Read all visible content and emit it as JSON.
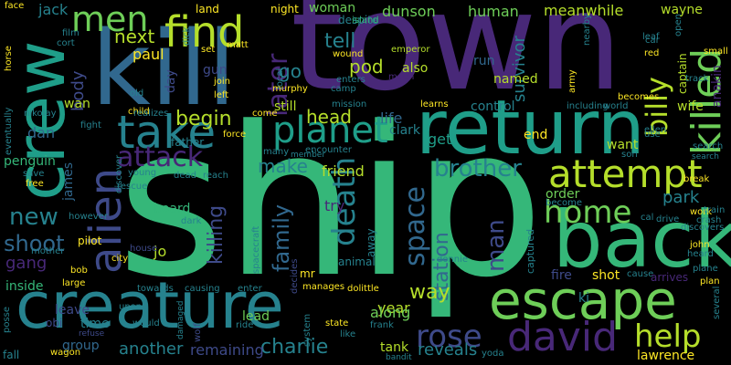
{
  "palette": {
    "background": "#000000",
    "dark_purple": "#440154",
    "purple": "#482878",
    "indigo": "#3e4a89",
    "blue": "#31688e",
    "teal": "#26828e",
    "sea": "#1f9e89",
    "green": "#35b779",
    "light_green": "#6ece58",
    "lime": "#b5de2b",
    "yellow": "#fde725"
  },
  "words": [
    {
      "text": "ship",
      "color": "#35b779"
    },
    {
      "text": "town",
      "color": "#482878"
    },
    {
      "text": "kill",
      "color": "#31688e"
    },
    {
      "text": "return",
      "color": "#1f9e89"
    },
    {
      "text": "crew",
      "color": "#1f9e89"
    },
    {
      "text": "back",
      "color": "#35b779"
    },
    {
      "text": "creature",
      "color": "#26828e"
    },
    {
      "text": "escape",
      "color": "#6ece58"
    },
    {
      "text": "attempt",
      "color": "#b5de2b"
    },
    {
      "text": "killed",
      "color": "#6ece58"
    },
    {
      "text": "find",
      "color": "#b5de2b"
    },
    {
      "text": "take",
      "color": "#26828e"
    },
    {
      "text": "david",
      "color": "#482878"
    },
    {
      "text": "alien",
      "color": "#3e4a89"
    },
    {
      "text": "planet",
      "color": "#1f9e89"
    },
    {
      "text": "men",
      "color": "#6ece58"
    },
    {
      "text": "death",
      "color": "#26828e"
    },
    {
      "text": "billy",
      "color": "#b5de2b"
    },
    {
      "text": "help",
      "color": "#b5de2b"
    },
    {
      "text": "home",
      "color": "#6ece58"
    },
    {
      "text": "rose",
      "color": "#3e4a89"
    },
    {
      "text": "attack",
      "color": "#482878"
    },
    {
      "text": "space",
      "color": "#31688e"
    },
    {
      "text": "later",
      "color": "#482878"
    },
    {
      "text": "brother",
      "color": "#26828e"
    },
    {
      "text": "shoot",
      "color": "#31688e"
    },
    {
      "text": "man",
      "color": "#3e4a89"
    },
    {
      "text": "new",
      "color": "#26828e"
    },
    {
      "text": "family",
      "color": "#31688e"
    },
    {
      "text": "killing",
      "color": "#3e4a89"
    },
    {
      "text": "station",
      "color": "#31688e"
    },
    {
      "text": "charlie",
      "color": "#26828e"
    },
    {
      "text": "head",
      "color": "#b5de2b"
    },
    {
      "text": "way",
      "color": "#b5de2b"
    },
    {
      "text": "begin",
      "color": "#b5de2b"
    },
    {
      "text": "next",
      "color": "#b5de2b"
    },
    {
      "text": "tell",
      "color": "#26828e"
    },
    {
      "text": "make",
      "color": "#26828e"
    },
    {
      "text": "go",
      "color": "#26828e"
    },
    {
      "text": "pod",
      "color": "#b5de2b"
    },
    {
      "text": "another",
      "color": "#26828e"
    },
    {
      "text": "remaining",
      "color": "#3e4a89"
    },
    {
      "text": "reveals",
      "color": "#26828e"
    },
    {
      "text": "friend",
      "color": "#b5de2b"
    },
    {
      "text": "survivor",
      "color": "#26828e"
    },
    {
      "text": "park",
      "color": "#26828e"
    },
    {
      "text": "gang",
      "color": "#482878"
    },
    {
      "text": "body",
      "color": "#3e4a89"
    },
    {
      "text": "paul",
      "color": "#fde725"
    },
    {
      "text": "year",
      "color": "#b5de2b"
    },
    {
      "text": "along",
      "color": "#6ece58"
    },
    {
      "text": "try",
      "color": "#482878"
    },
    {
      "text": "life",
      "color": "#31688e"
    },
    {
      "text": "get",
      "color": "#1f9e89"
    },
    {
      "text": "dan",
      "color": "#31688e"
    },
    {
      "text": "james",
      "color": "#31688e"
    },
    {
      "text": "jo",
      "color": "#b5de2b"
    },
    {
      "text": "group",
      "color": "#31688e"
    },
    {
      "text": "time",
      "color": "#26828e"
    },
    {
      "text": "leave",
      "color": "#3e4a89"
    },
    {
      "text": "inside",
      "color": "#35b779"
    },
    {
      "text": "gun",
      "color": "#3e4a89"
    },
    {
      "text": "lead",
      "color": "#6ece58"
    },
    {
      "text": "order",
      "color": "#6ece58"
    },
    {
      "text": "dunson",
      "color": "#6ece58"
    },
    {
      "text": "woman",
      "color": "#6ece58"
    },
    {
      "text": "human",
      "color": "#6ece58"
    },
    {
      "text": "meanwhile",
      "color": "#b5de2b"
    },
    {
      "text": "named",
      "color": "#b5de2b"
    },
    {
      "text": "run",
      "color": "#31688e"
    },
    {
      "text": "also",
      "color": "#b5de2b"
    },
    {
      "text": "still",
      "color": "#b5de2b"
    },
    {
      "text": "clark",
      "color": "#26828e"
    },
    {
      "text": "want",
      "color": "#b5de2b"
    },
    {
      "text": "end",
      "color": "#fde725"
    },
    {
      "text": "control",
      "color": "#26828e"
    },
    {
      "text": "wife",
      "color": "#b5de2b"
    },
    {
      "text": "board",
      "color": "#35b779"
    },
    {
      "text": "penguin",
      "color": "#35b779"
    },
    {
      "text": "jack",
      "color": "#26828e"
    },
    {
      "text": "wan",
      "color": "#b5de2b"
    },
    {
      "text": "day",
      "color": "#3e4a89"
    },
    {
      "text": "father",
      "color": "#26828e"
    },
    {
      "text": "tank",
      "color": "#b5de2b"
    },
    {
      "text": "fire",
      "color": "#3e4a89"
    },
    {
      "text": "shot",
      "color": "#fde725"
    },
    {
      "text": "ki",
      "color": "#26828e"
    },
    {
      "text": "lawrence",
      "color": "#fde725"
    },
    {
      "text": "anakin",
      "color": "#482878"
    },
    {
      "text": "wayne",
      "color": "#b5de2b"
    },
    {
      "text": "captain",
      "color": "#b5de2b"
    },
    {
      "text": "land",
      "color": "#fde725"
    },
    {
      "text": "night",
      "color": "#fde725"
    },
    {
      "text": "despite",
      "color": "#26828e"
    },
    {
      "text": "island",
      "color": "#35b779"
    },
    {
      "text": "emperor",
      "color": "#b5de2b"
    },
    {
      "text": "enters",
      "color": "#26828e"
    },
    {
      "text": "camp",
      "color": "#26828e"
    },
    {
      "text": "moon",
      "color": "#482878"
    },
    {
      "text": "mission",
      "color": "#26828e"
    },
    {
      "text": "local",
      "color": "#26828e"
    },
    {
      "text": "wound",
      "color": "#fde725"
    },
    {
      "text": "murphy",
      "color": "#fde725"
    },
    {
      "text": "join",
      "color": "#fde725"
    },
    {
      "text": "left",
      "color": "#fde725"
    },
    {
      "text": "old",
      "color": "#26828e"
    },
    {
      "text": "set",
      "color": "#fde725"
    },
    {
      "text": "matt",
      "color": "#fde725"
    },
    {
      "text": "dick",
      "color": "#26828e"
    },
    {
      "text": "film",
      "color": "#26828e"
    },
    {
      "text": "cort",
      "color": "#26828e"
    },
    {
      "text": "child",
      "color": "#fde725"
    },
    {
      "text": "realizes",
      "color": "#26828e"
    },
    {
      "text": "come",
      "color": "#fde725"
    },
    {
      "text": "force",
      "color": "#fde725"
    },
    {
      "text": "many",
      "color": "#26828e"
    },
    {
      "text": "member",
      "color": "#26828e"
    },
    {
      "text": "encounter",
      "color": "#26828e"
    },
    {
      "text": "learns",
      "color": "#fde725"
    },
    {
      "text": "including",
      "color": "#26828e"
    },
    {
      "text": "army",
      "color": "#fde725"
    },
    {
      "text": "world",
      "color": "#26828e"
    },
    {
      "text": "ellen",
      "color": "#26828e"
    },
    {
      "text": "use",
      "color": "#26828e"
    },
    {
      "text": "son",
      "color": "#26828e"
    },
    {
      "text": "become",
      "color": "#26828e"
    },
    {
      "text": "becomes",
      "color": "#fde725"
    },
    {
      "text": "leaf",
      "color": "#26828e"
    },
    {
      "text": "car",
      "color": "#26828e"
    },
    {
      "text": "open",
      "color": "#26828e"
    },
    {
      "text": "red",
      "color": "#fde725"
    },
    {
      "text": "small",
      "color": "#fde725"
    },
    {
      "text": "track",
      "color": "#26828e"
    },
    {
      "text": "break",
      "color": "#fde725"
    },
    {
      "text": "search",
      "color": "#26828e"
    },
    {
      "text": "work",
      "color": "#fde725"
    },
    {
      "text": "train",
      "color": "#26828e"
    },
    {
      "text": "cal",
      "color": "#26828e"
    },
    {
      "text": "drive",
      "color": "#26828e"
    },
    {
      "text": "discovers",
      "color": "#26828e"
    },
    {
      "text": "crash",
      "color": "#26828e"
    },
    {
      "text": "john",
      "color": "#fde725"
    },
    {
      "text": "heard",
      "color": "#26828e"
    },
    {
      "text": "plan",
      "color": "#fde725"
    },
    {
      "text": "cause",
      "color": "#26828e"
    },
    {
      "text": "arrives",
      "color": "#482878"
    },
    {
      "text": "plane",
      "color": "#26828e"
    },
    {
      "text": "several",
      "color": "#26828e"
    },
    {
      "text": "search",
      "color": "#26828e"
    },
    {
      "text": "horse",
      "color": "#fde725"
    },
    {
      "text": "eventually",
      "color": "#26828e"
    },
    {
      "text": "nikolay",
      "color": "#26828e"
    },
    {
      "text": "fight",
      "color": "#26828e"
    },
    {
      "text": "save",
      "color": "#26828e"
    },
    {
      "text": "free",
      "color": "#fde725"
    },
    {
      "text": "however",
      "color": "#26828e"
    },
    {
      "text": "mother",
      "color": "#26828e"
    },
    {
      "text": "pilot",
      "color": "#fde725"
    },
    {
      "text": "city",
      "color": "#fde725"
    },
    {
      "text": "bob",
      "color": "#fde725"
    },
    {
      "text": "large",
      "color": "#fde725"
    },
    {
      "text": "upon",
      "color": "#26828e"
    },
    {
      "text": "would",
      "color": "#26828e"
    },
    {
      "text": "obi",
      "color": "#3e4a89"
    },
    {
      "text": "refuse",
      "color": "#3e4a89"
    },
    {
      "text": "wagon",
      "color": "#fde725"
    },
    {
      "text": "fall",
      "color": "#26828e"
    },
    {
      "text": "posse",
      "color": "#26828e"
    },
    {
      "text": "face",
      "color": "#fde725"
    },
    {
      "text": "young",
      "color": "#26828e"
    },
    {
      "text": "dead",
      "color": "#26828e"
    },
    {
      "text": "reach",
      "color": "#26828e"
    },
    {
      "text": "rescue",
      "color": "#26828e"
    },
    {
      "text": "discover",
      "color": "#26828e"
    },
    {
      "text": "dark",
      "color": "#26828e"
    },
    {
      "text": "house",
      "color": "#3e4a89"
    },
    {
      "text": "towards",
      "color": "#26828e"
    },
    {
      "text": "causing",
      "color": "#26828e"
    },
    {
      "text": "enter",
      "color": "#26828e"
    },
    {
      "text": "spacecraft",
      "color": "#26828e"
    },
    {
      "text": "wolf",
      "color": "#3e4a89"
    },
    {
      "text": "damaged",
      "color": "#26828e"
    },
    {
      "text": "ride",
      "color": "#26828e"
    },
    {
      "text": "manages",
      "color": "#fde725"
    },
    {
      "text": "dolittle",
      "color": "#fde725"
    },
    {
      "text": "system",
      "color": "#26828e"
    },
    {
      "text": "state",
      "color": "#fde725"
    },
    {
      "text": "like",
      "color": "#26828e"
    },
    {
      "text": "frank",
      "color": "#26828e"
    },
    {
      "text": "bandit",
      "color": "#26828e"
    },
    {
      "text": "yoda",
      "color": "#26828e"
    },
    {
      "text": "decides",
      "color": "#3e4a89"
    },
    {
      "text": "animal",
      "color": "#26828e"
    },
    {
      "text": "away",
      "color": "#26828e"
    },
    {
      "text": "captured",
      "color": "#26828e"
    },
    {
      "text": "donnie",
      "color": "#26828e"
    },
    {
      "text": "mr",
      "color": "#fde725"
    },
    {
      "text": "nearby",
      "color": "#26828e"
    }
  ]
}
